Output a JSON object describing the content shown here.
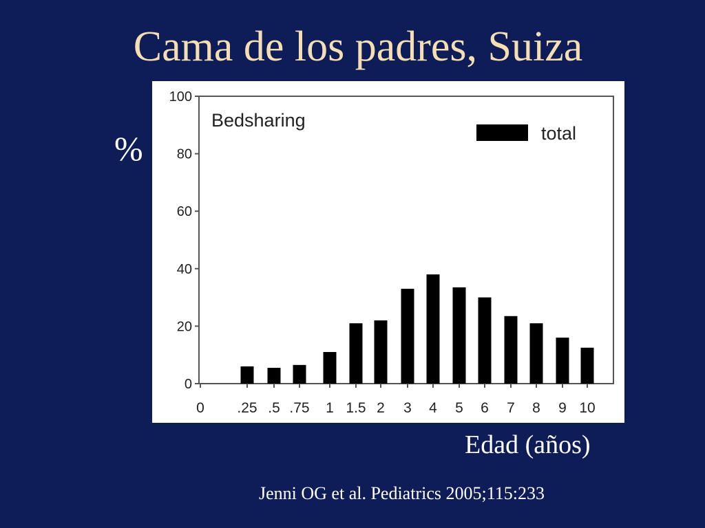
{
  "slide": {
    "title": "Cama de los padres, Suiza",
    "y_axis_label": "%",
    "x_axis_label": "Edad (años)",
    "citation": "Jenni OG et al. Pediatrics 2005;115:233"
  },
  "colors": {
    "background": "#0e1c57",
    "title": "#f5deb3",
    "text": "#ffffff",
    "bars": "#000000"
  },
  "chart_data": {
    "type": "bar",
    "title": "Bedsharing",
    "xlabel": "",
    "ylabel": "",
    "x_tick_labels": [
      "0",
      ".25",
      ".5",
      ".75",
      "1",
      "1.5",
      "2",
      "3",
      "4",
      "5",
      "6",
      "7",
      "8",
      "9",
      "10"
    ],
    "categories": [
      ".25",
      ".5",
      ".75",
      "1",
      "1.5",
      "2",
      "3",
      "4",
      "5",
      "6",
      "7",
      "8",
      "9",
      "10"
    ],
    "series": [
      {
        "name": "total",
        "values": [
          6,
          5.5,
          6.5,
          11,
          21,
          22,
          33,
          38,
          33.5,
          30,
          23.5,
          21,
          16,
          12.5
        ]
      }
    ],
    "ylim": [
      0,
      100
    ],
    "y_ticks": [
      "0",
      "20",
      "40",
      "60",
      "80",
      "100"
    ],
    "legend_position": "top-right",
    "grid": false
  }
}
